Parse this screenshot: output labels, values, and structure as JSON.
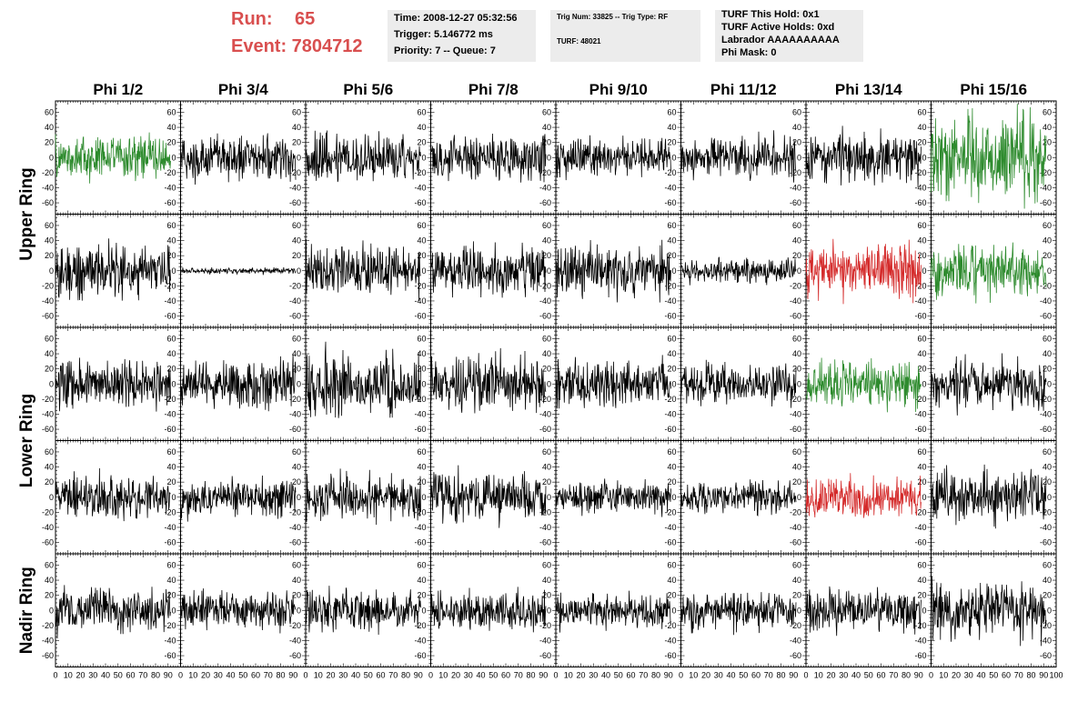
{
  "header": {
    "run_label": "Run:",
    "run_value": "65",
    "event_label": "Event: 7804712",
    "box1": [
      "Time: 2008-12-27 05:32:56",
      "Trigger: 5.146772 ms",
      "Priority: 7 -- Queue: 7"
    ],
    "box2": [
      "Trig Num: 33825 -- Trig Type: RF",
      "TURF: 48021"
    ],
    "box3": [
      "TURF This Hold: 0x1",
      "TURF Active Holds: 0xd",
      "Labrador AAAAAAAAAA",
      "Phi Mask: 0"
    ]
  },
  "colors": {
    "normal": "#000000",
    "green": "#2e8b2e",
    "red": "#d42a2a",
    "title_red": "#d94f4f",
    "box_bg": "#ececec"
  },
  "chart_data": {
    "type": "line",
    "columns": [
      "Phi 1/2",
      "Phi 3/4",
      "Phi 5/6",
      "Phi 7/8",
      "Phi 9/10",
      "Phi 11/12",
      "Phi 13/14",
      "Phi 15/16"
    ],
    "row_groups": [
      {
        "label": "Upper Ring",
        "rows": [
          0,
          1
        ]
      },
      {
        "label": "Lower Ring",
        "rows": [
          2,
          3
        ]
      },
      {
        "label": "Nadir Ring",
        "rows": [
          4
        ]
      }
    ],
    "xlim": [
      0,
      100
    ],
    "ylim": [
      -75,
      75
    ],
    "x_tick_labels": [
      "0",
      "10",
      "20",
      "30",
      "40",
      "50",
      "60",
      "70",
      "80",
      "90",
      "100"
    ],
    "y_tick_labels": [
      "60",
      "40",
      "20",
      "0",
      "-20",
      "-40",
      "-60"
    ],
    "waveform_x_range": [
      0,
      92
    ],
    "samples_per_trace": 260,
    "panels": [
      [
        {
          "color": "green",
          "amp": 14
        },
        {
          "color": "black",
          "amp": 14
        },
        {
          "color": "black",
          "amp": 16
        },
        {
          "color": "black",
          "amp": 15
        },
        {
          "color": "black",
          "amp": 12
        },
        {
          "color": "black",
          "amp": 13
        },
        {
          "color": "black",
          "amp": 16
        },
        {
          "color": "green",
          "amp": 26
        }
      ],
      [
        {
          "color": "black",
          "amp": 17
        },
        {
          "color": "black",
          "amp": 2
        },
        {
          "color": "black",
          "amp": 16
        },
        {
          "color": "black",
          "amp": 15
        },
        {
          "color": "black",
          "amp": 16
        },
        {
          "color": "black",
          "amp": 8
        },
        {
          "color": "red",
          "amp": 17
        },
        {
          "color": "green",
          "amp": 16
        }
      ],
      [
        {
          "color": "black",
          "amp": 16
        },
        {
          "color": "black",
          "amp": 15
        },
        {
          "color": "black",
          "amp": 19
        },
        {
          "color": "black",
          "amp": 17
        },
        {
          "color": "black",
          "amp": 15
        },
        {
          "color": "black",
          "amp": 12
        },
        {
          "color": "green",
          "amp": 16
        },
        {
          "color": "black",
          "amp": 15
        }
      ],
      [
        {
          "color": "black",
          "amp": 14
        },
        {
          "color": "black",
          "amp": 12
        },
        {
          "color": "black",
          "amp": 15
        },
        {
          "color": "black",
          "amp": 16
        },
        {
          "color": "black",
          "amp": 10
        },
        {
          "color": "black",
          "amp": 10
        },
        {
          "color": "red",
          "amp": 14
        },
        {
          "color": "black",
          "amp": 16
        }
      ],
      [
        {
          "color": "black",
          "amp": 14
        },
        {
          "color": "black",
          "amp": 12
        },
        {
          "color": "black",
          "amp": 13
        },
        {
          "color": "black",
          "amp": 12
        },
        {
          "color": "black",
          "amp": 11
        },
        {
          "color": "black",
          "amp": 12
        },
        {
          "color": "black",
          "amp": 13
        },
        {
          "color": "black",
          "amp": 18
        }
      ]
    ]
  }
}
